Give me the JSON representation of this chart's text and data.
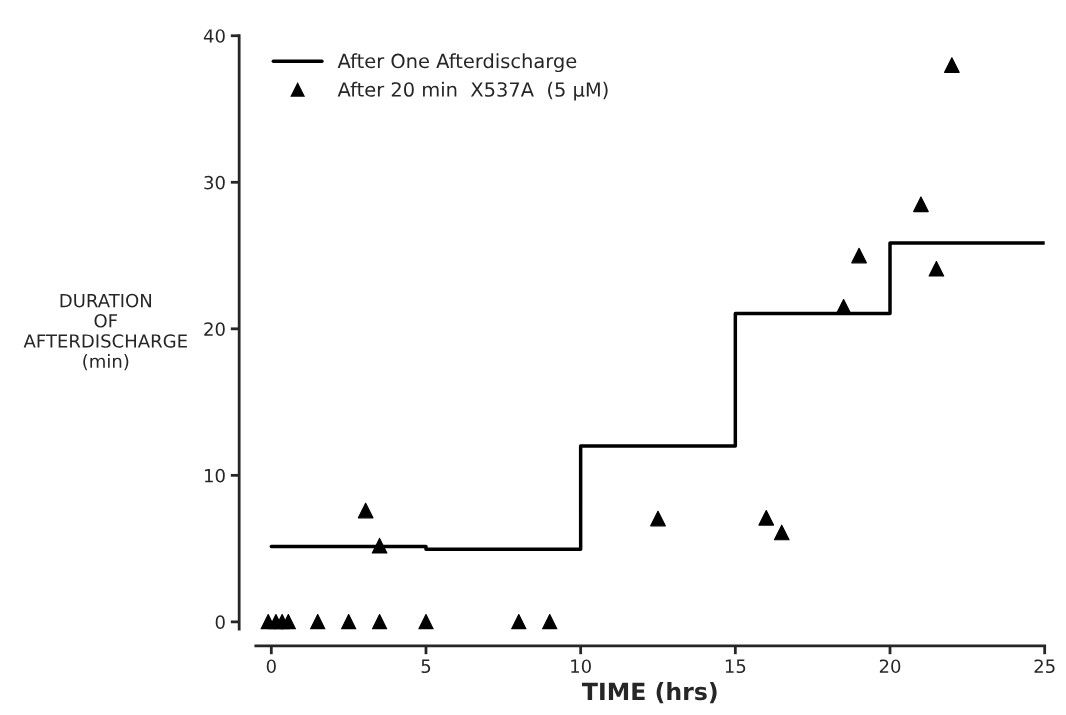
{
  "chart_data": {
    "type": "scatter",
    "xlabel": "TIME (hrs)",
    "ylabel": "DURATION\nOF\nAFTERDISCHARGE\n(min)",
    "xlim": [
      -0.5,
      25
    ],
    "ylim": [
      -0.5,
      40
    ],
    "xticks": [
      0,
      5,
      10,
      15,
      20,
      25
    ],
    "yticks": [
      0,
      10,
      20,
      30,
      40
    ],
    "grid": false,
    "legend": "top left",
    "series": [
      {
        "name": "After One Afterdischarge",
        "type": "step",
        "color": "#000000",
        "line_style": "solid",
        "marker": "none",
        "x": [
          0,
          5,
          10,
          15,
          20,
          25
        ],
        "values": [
          5.15,
          4.95,
          12,
          21.05,
          25.85,
          25.85
        ]
      },
      {
        "name": "After 20 min  X537A  (5 μM)",
        "color": "#000000",
        "marker": "triangle",
        "x": [
          -0.1,
          0.15,
          0.35,
          0.55,
          1.5,
          2.5,
          3.5,
          5,
          8,
          9,
          3.05,
          3.5,
          12.5,
          16,
          16.5,
          18.5,
          19,
          21,
          21.5,
          22
        ],
        "values": [
          0,
          0,
          0,
          0,
          0,
          0,
          0,
          0,
          0,
          0,
          7.6,
          5.2,
          7.05,
          7.1,
          6.1,
          21.5,
          25,
          28.5,
          24.1,
          38
        ]
      }
    ]
  }
}
